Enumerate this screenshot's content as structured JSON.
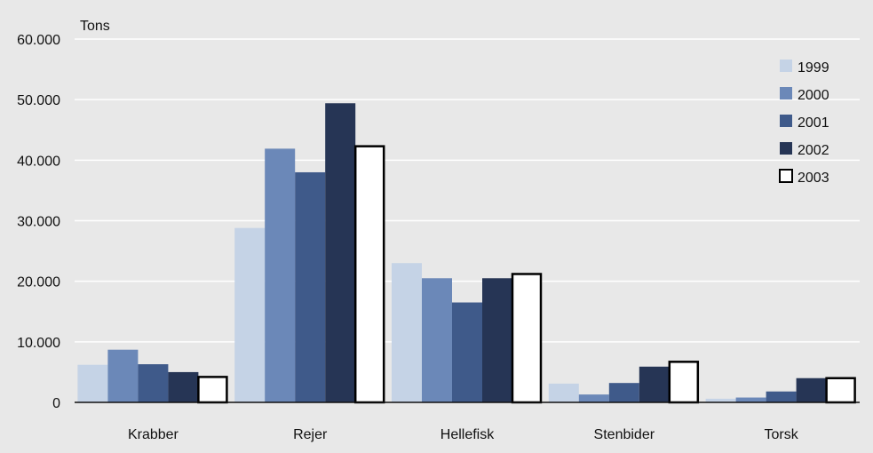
{
  "chart_data": {
    "type": "bar",
    "unit_label": "Tons",
    "categories": [
      "Krabber",
      "Rejer",
      "Hellefisk",
      "Stenbider",
      "Torsk"
    ],
    "series": [
      {
        "name": "1999",
        "color": "#c5d3e6",
        "values": [
          6200,
          28800,
          23000,
          3100,
          600
        ]
      },
      {
        "name": "2000",
        "color": "#6b88b8",
        "values": [
          8700,
          41900,
          20500,
          1300,
          800
        ]
      },
      {
        "name": "2001",
        "color": "#3f5a8a",
        "values": [
          6300,
          38000,
          16500,
          3200,
          1800
        ]
      },
      {
        "name": "2002",
        "color": "#263555",
        "values": [
          5000,
          49400,
          20500,
          5900,
          4000
        ]
      },
      {
        "name": "2003",
        "color": "#ffffff",
        "values": [
          4200,
          42300,
          21200,
          6700,
          4000
        ]
      }
    ],
    "y_ticks": [
      "0",
      "10.000",
      "20.000",
      "30.000",
      "40.000",
      "50.000",
      "60.000"
    ],
    "y_tick_values": [
      0,
      10000,
      20000,
      30000,
      40000,
      50000,
      60000
    ],
    "ylim": [
      0,
      60000
    ],
    "grid": true,
    "legend_position": "top-right",
    "colors": {
      "background": "#e8e8e8",
      "grid": "#ffffff",
      "axis": "#111111",
      "bar_outline": "#000000"
    }
  }
}
